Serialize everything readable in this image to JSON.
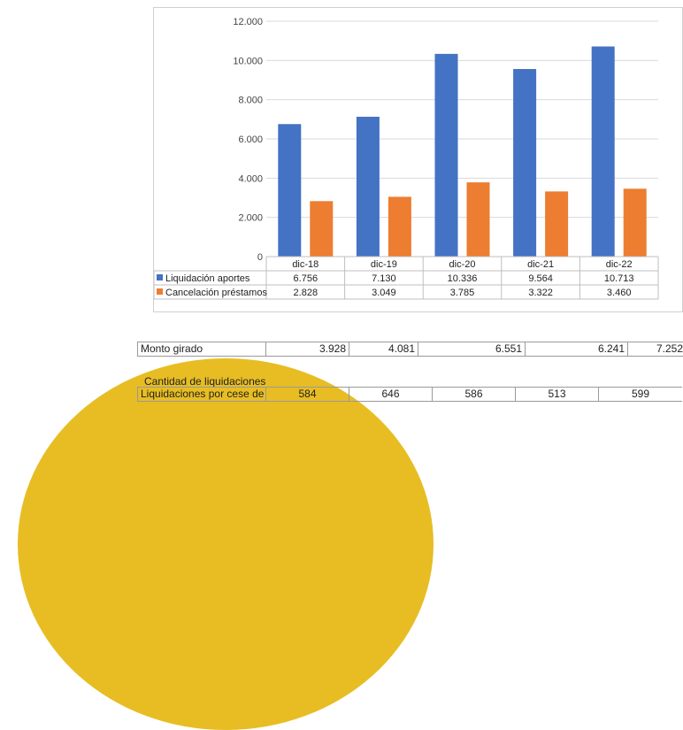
{
  "chart_data": {
    "type": "bar",
    "categories": [
      "dic-18",
      "dic-19",
      "dic-20",
      "dic-21",
      "dic-22"
    ],
    "series": [
      {
        "name": "Liquidación aportes",
        "values": [
          6756,
          7130,
          10336,
          9564,
          10713
        ],
        "labels": [
          "6.756",
          "7.130",
          "10.336",
          "9.564",
          "10.713"
        ],
        "color": "#4472c4"
      },
      {
        "name": "Cancelación préstamos",
        "values": [
          2828,
          3049,
          3785,
          3322,
          3460
        ],
        "labels": [
          "2.828",
          "3.049",
          "3.785",
          "3.322",
          "3.460"
        ],
        "color": "#ed7d31"
      }
    ],
    "ylim": [
      0,
      12000
    ],
    "yticks": [
      0,
      2000,
      4000,
      6000,
      8000,
      10000,
      12000
    ],
    "ytick_labels": [
      "0",
      "2.000",
      "4.000",
      "6.000",
      "8.000",
      "10.000",
      "12.000"
    ],
    "grid": true,
    "legend": "data-table"
  },
  "sheet": {
    "monto_label": "Monto girado",
    "monto_values": [
      "3.928",
      "4.081",
      "6.551",
      "6.241",
      "7.252"
    ],
    "cantidad_title": "Cantidad de liquidaciones",
    "cese_label": "Liquidaciones por cese de fu",
    "cese_values": [
      "584",
      "646",
      "586",
      "513",
      "599"
    ]
  }
}
